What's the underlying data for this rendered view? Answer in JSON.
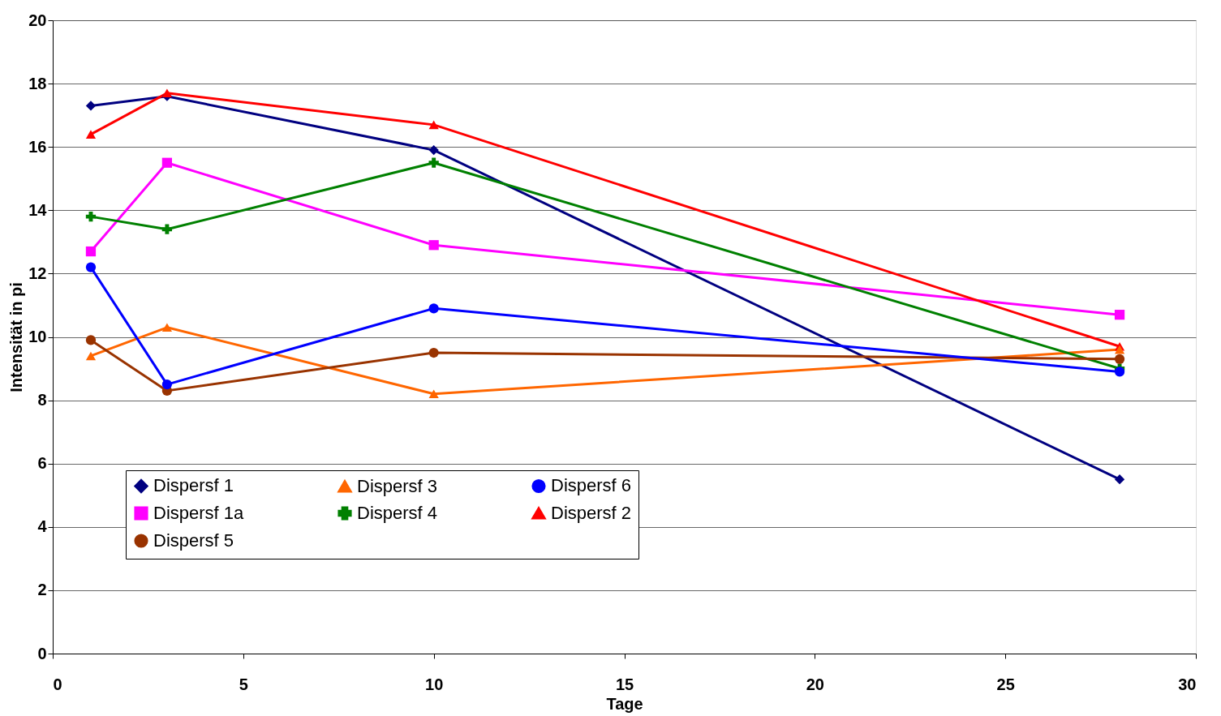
{
  "chart_data": {
    "type": "line",
    "xlabel": "Tage",
    "ylabel": "Intensität in pi",
    "x": [
      1,
      3,
      10,
      28
    ],
    "xlim": [
      0,
      30
    ],
    "xticks": [
      0,
      5,
      10,
      15,
      20,
      25,
      30
    ],
    "ylim": [
      0,
      20
    ],
    "yticks": [
      0,
      2,
      4,
      6,
      8,
      10,
      12,
      14,
      16,
      18,
      20
    ],
    "grid": "y",
    "legend": "bottom",
    "line_style": "solid",
    "series": [
      {
        "name": "Dispersf 1",
        "color": "#000080",
        "marker": "diamond",
        "values": [
          17.3,
          17.6,
          15.9,
          5.5
        ]
      },
      {
        "name": "Dispersf 1a",
        "color": "#ff00ff",
        "marker": "square",
        "values": [
          12.7,
          15.5,
          12.9,
          10.7
        ]
      },
      {
        "name": "Dispersf 2",
        "color": "#ff0000",
        "marker": "triangle",
        "values": [
          16.4,
          17.7,
          16.7,
          9.7
        ]
      },
      {
        "name": "Dispersf 3",
        "color": "#ff6600",
        "marker": "triangle",
        "values": [
          9.4,
          10.3,
          8.2,
          9.6
        ]
      },
      {
        "name": "Dispersf 4",
        "color": "#008000",
        "marker": "cross",
        "values": [
          13.8,
          13.4,
          15.5,
          9.0
        ]
      },
      {
        "name": "Dispersf 5",
        "color": "#993300",
        "marker": "circle",
        "values": [
          9.9,
          8.3,
          9.5,
          9.3
        ]
      },
      {
        "name": "Dispersf 6",
        "color": "#0000ff",
        "marker": "circle",
        "values": [
          12.2,
          8.5,
          10.9,
          8.9
        ]
      }
    ]
  }
}
